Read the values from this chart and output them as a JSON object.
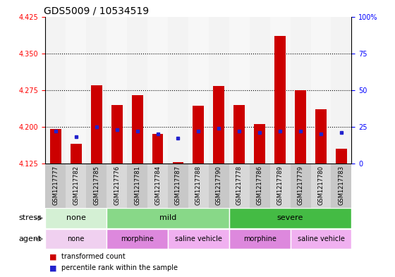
{
  "title": "GDS5009 / 10534519",
  "samples": [
    "GSM1217777",
    "GSM1217782",
    "GSM1217785",
    "GSM1217776",
    "GSM1217781",
    "GSM1217784",
    "GSM1217787",
    "GSM1217788",
    "GSM1217790",
    "GSM1217778",
    "GSM1217786",
    "GSM1217789",
    "GSM1217779",
    "GSM1217780",
    "GSM1217783"
  ],
  "red_values": [
    4.195,
    4.165,
    4.285,
    4.245,
    4.265,
    4.185,
    4.128,
    4.243,
    4.283,
    4.245,
    4.205,
    4.385,
    4.275,
    4.235,
    4.155
  ],
  "blue_values_pct": [
    22,
    18,
    25,
    23,
    22,
    20,
    17,
    22,
    24,
    22,
    21,
    22,
    22,
    20,
    21
  ],
  "ymin": 4.125,
  "ymax": 4.425,
  "yticks": [
    4.125,
    4.2,
    4.275,
    4.35,
    4.425
  ],
  "right_yticks_pct": [
    0,
    25,
    50,
    75,
    100
  ],
  "right_ytick_labels": [
    "0",
    "25",
    "50",
    "75",
    "100%"
  ],
  "dotted_lines": [
    4.2,
    4.275,
    4.35
  ],
  "stress_groups": [
    {
      "label": "none",
      "start": 0,
      "end": 3,
      "color": "#d4f0d4"
    },
    {
      "label": "mild",
      "start": 3,
      "end": 9,
      "color": "#88d888"
    },
    {
      "label": "severe",
      "start": 9,
      "end": 15,
      "color": "#44bb44"
    }
  ],
  "agent_groups": [
    {
      "label": "none",
      "start": 0,
      "end": 3,
      "color": "#f0d0f0"
    },
    {
      "label": "morphine",
      "start": 3,
      "end": 6,
      "color": "#dd88dd"
    },
    {
      "label": "saline vehicle",
      "start": 6,
      "end": 9,
      "color": "#f0b0f0"
    },
    {
      "label": "morphine",
      "start": 9,
      "end": 12,
      "color": "#dd88dd"
    },
    {
      "label": "saline vehicle",
      "start": 12,
      "end": 15,
      "color": "#f0b0f0"
    }
  ],
  "bar_color": "#cc0000",
  "blue_color": "#2222cc",
  "bar_width": 0.55,
  "title_fontsize": 10,
  "stress_row_label": "stress",
  "agent_row_label": "agent",
  "legend_labels": [
    "transformed count",
    "percentile rank within the sample"
  ]
}
